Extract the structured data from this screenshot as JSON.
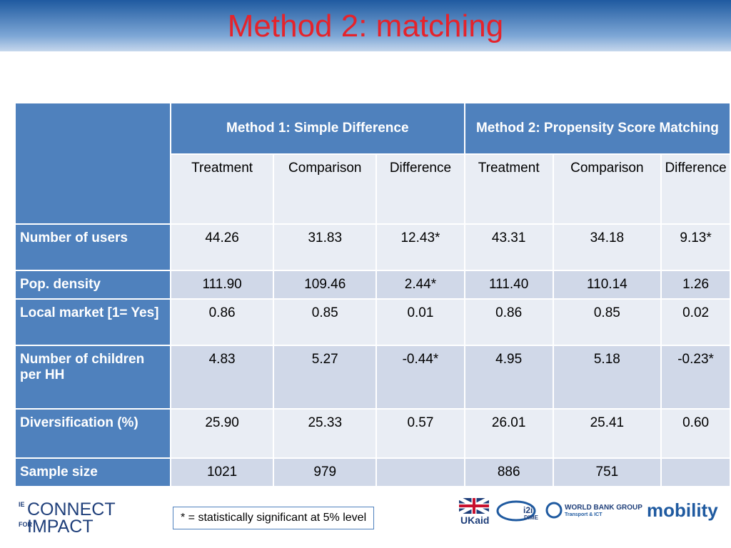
{
  "header": {
    "title": "Method 2: matching"
  },
  "table": {
    "groups": [
      "Method 1: Simple Difference",
      "Method 2: Propensity Score Matching"
    ],
    "columns": [
      "Treatment",
      "Comparison",
      "Difference",
      "Treatment",
      "Comparison",
      "Difference"
    ],
    "rows": [
      {
        "label": "Number of users",
        "cells": [
          "44.26",
          "31.83",
          "12.43*",
          "43.31",
          "34.18",
          "9.13*"
        ]
      },
      {
        "label": "Pop. density",
        "cells": [
          "111.90",
          "109.46",
          "2.44*",
          "111.40",
          "110.14",
          "1.26"
        ]
      },
      {
        "label": "Local market [1= Yes]",
        "cells": [
          "0.86",
          "0.85",
          "0.01",
          "0.86",
          "0.85",
          "0.02"
        ]
      },
      {
        "label": "Number of children per HH",
        "cells": [
          "4.83",
          "5.27",
          "-0.44*",
          "4.95",
          "5.18",
          "-0.23*"
        ]
      },
      {
        "label": "Diversification (%)",
        "cells": [
          "25.90",
          "25.33",
          "0.57",
          "26.01",
          "25.41",
          "0.60"
        ]
      },
      {
        "label": "Sample size",
        "cells": [
          "1021",
          "979",
          null,
          "886",
          "751",
          null
        ]
      }
    ]
  },
  "footnote": "* = statistically significant at 5% level",
  "logos": {
    "ie": "IE",
    "connect": "CONNECT",
    "for": "FOR",
    "impact": "IMPACT",
    "ukaid": "UKaid",
    "i2i": "i2i",
    "dime": "DIME",
    "worldbank": "WORLD BANK GROUP",
    "wbsub": "Transport & ICT",
    "mobility": "mobility"
  }
}
